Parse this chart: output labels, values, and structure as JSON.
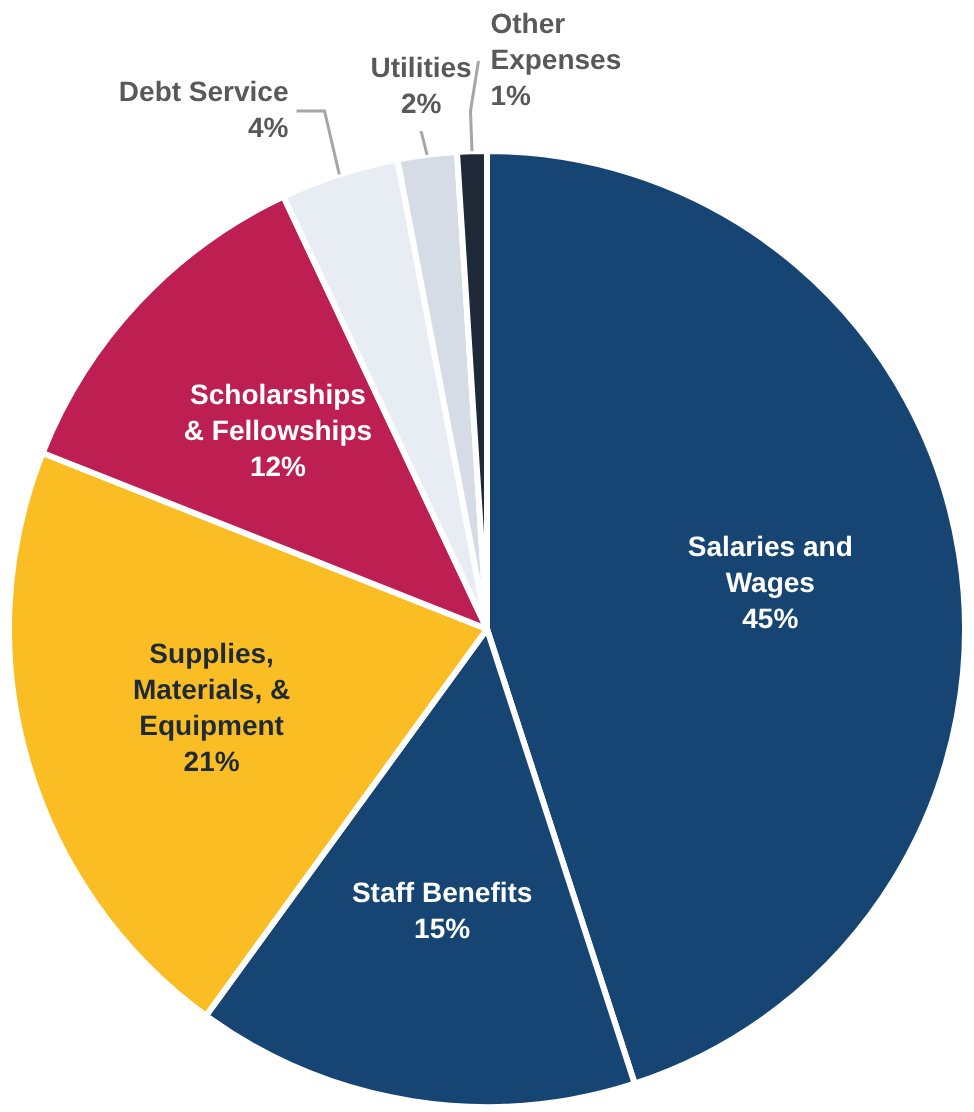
{
  "chart_data": {
    "type": "pie",
    "categories": [
      "Salaries and Wages",
      "Staff Benefits",
      "Supplies, Materials, & Equipment",
      "Scholarships & Fellowships",
      "Debt Service",
      "Utilities",
      "Other Expenses"
    ],
    "values": [
      45,
      15,
      21,
      12,
      4,
      2,
      1
    ],
    "value_labels": [
      "45%",
      "15%",
      "21%",
      "12%",
      "4%",
      "2%",
      "1%"
    ],
    "colors": [
      "#174573",
      "#174573",
      "#fbbd24",
      "#bd1f52",
      "#e8edf3",
      "#d5dce6",
      "#1f2a38"
    ],
    "legend": false
  }
}
